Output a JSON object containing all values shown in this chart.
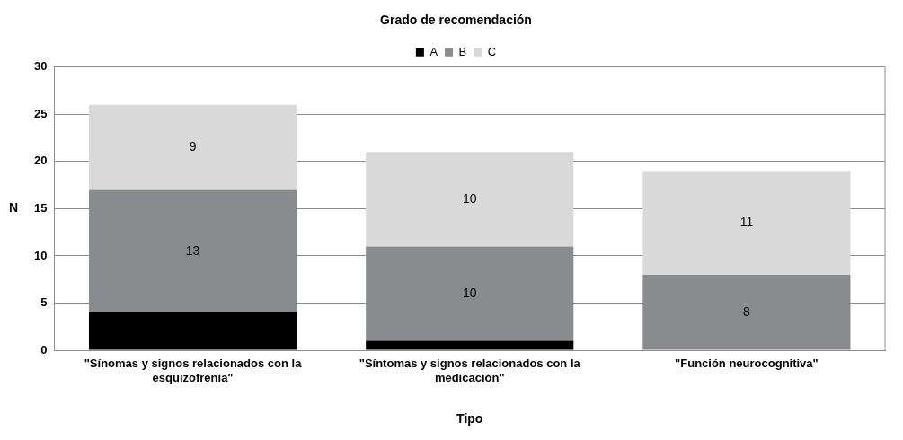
{
  "chart_data": {
    "type": "bar",
    "title": "Grado de recomendación",
    "xlabel": "Tipo",
    "ylabel": "N",
    "categories": [
      "\"Sínomas y signos relacionados con la esquizofrenia\"",
      "\"Síntomas y signos relacionados con la medicación\"",
      "\"Función neurocognitiva\""
    ],
    "stacked": true,
    "series": [
      {
        "name": "A",
        "color": "#000000",
        "values": [
          4,
          1,
          0
        ]
      },
      {
        "name": "B",
        "color": "#898b8e",
        "values": [
          13,
          10,
          8
        ],
        "value_labels": [
          "13",
          "10",
          "8"
        ]
      },
      {
        "name": "C",
        "color": "#d9d9d9",
        "values": [
          9,
          10,
          11
        ],
        "value_labels": [
          "9",
          "10",
          "11"
        ]
      }
    ],
    "ylim": [
      0,
      30
    ],
    "yticks": [
      0,
      5,
      10,
      15,
      20,
      25,
      30
    ],
    "grid": "y",
    "legend": "top"
  }
}
